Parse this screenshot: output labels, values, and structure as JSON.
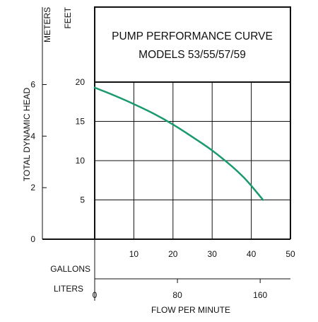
{
  "chart_data": {
    "type": "line",
    "title": "PUMP PERFORMANCE CURVE",
    "subtitle": "MODELS 53/55/57/59",
    "xlabel": "FLOW PER MINUTE",
    "ylabel": "TOTAL DYNAMIC HEAD",
    "x_unit_primary": "GALLONS",
    "x_unit_secondary": "LITERS",
    "y_unit_primary": "FEET",
    "y_unit_secondary": "METERS",
    "xlim": [
      0,
      50
    ],
    "ylim": [
      0,
      20
    ],
    "x_ticks": [
      10,
      20,
      30,
      40,
      50
    ],
    "y_ticks": [
      5,
      10,
      15,
      20
    ],
    "x_secondary_ticks": [
      0,
      80,
      160
    ],
    "y_secondary_ticks": [
      0,
      2,
      4,
      6
    ],
    "grid": true,
    "series": [
      {
        "color": "#1a9a6e",
        "x": [
          0,
          5,
          10,
          15,
          20,
          25,
          30,
          35,
          38,
          40,
          43
        ],
        "y": [
          19.3,
          18.3,
          17.2,
          16.0,
          14.6,
          13.0,
          11.3,
          9.3,
          7.9,
          6.8,
          5.0
        ]
      }
    ]
  }
}
